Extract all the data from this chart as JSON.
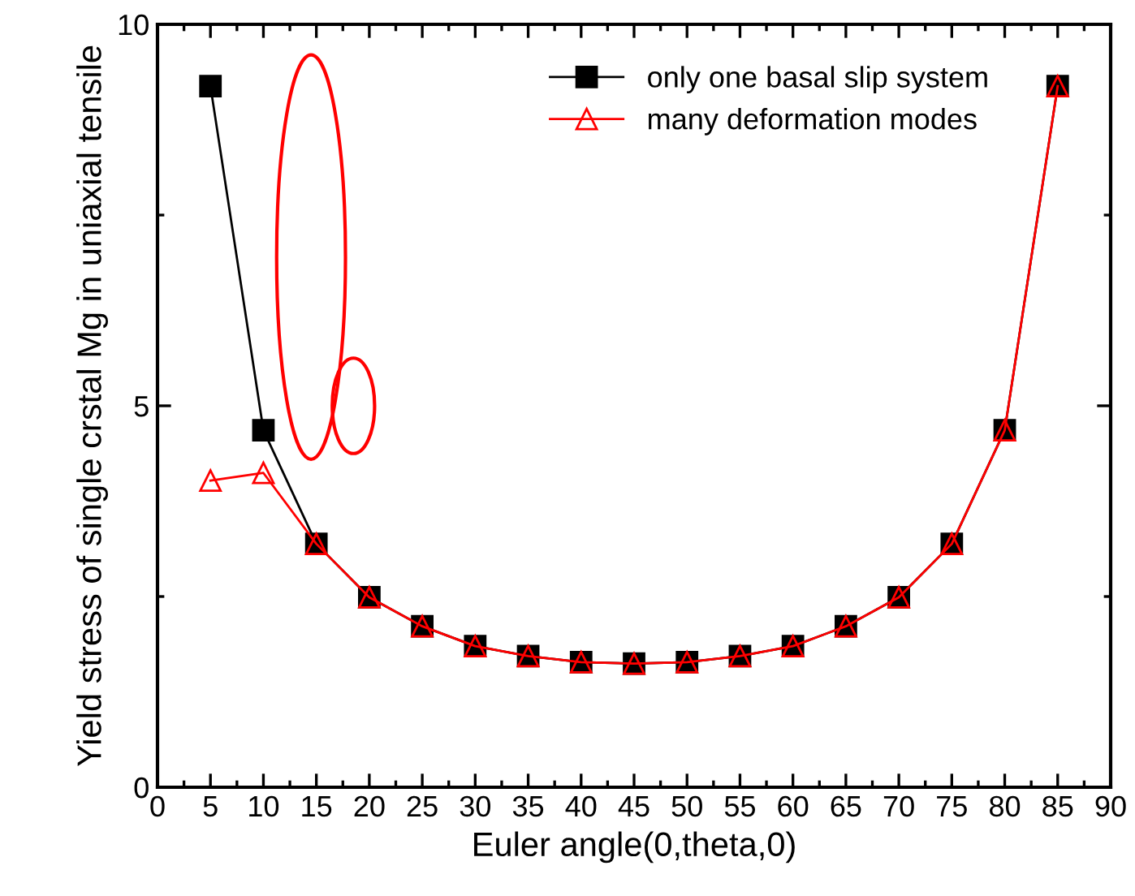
{
  "chart_data": {
    "type": "line",
    "xlabel": "Euler angle(0,theta,0)",
    "ylabel": "Yield stress of single crstal Mg in uniaxial tensile",
    "x": [
      5,
      10,
      15,
      20,
      25,
      30,
      35,
      40,
      45,
      50,
      55,
      60,
      65,
      70,
      75,
      80,
      85
    ],
    "series": [
      {
        "name": "only one basal slip system",
        "color": "#000000",
        "marker": "square",
        "values": [
          9.19,
          4.68,
          3.19,
          2.49,
          2.11,
          1.85,
          1.72,
          1.64,
          1.62,
          1.64,
          1.72,
          1.85,
          2.11,
          2.49,
          3.19,
          4.68,
          9.19
        ]
      },
      {
        "name": "many deformation modes",
        "color": "#ff0000",
        "marker": "triangle",
        "values": [
          4.02,
          4.12,
          3.19,
          2.49,
          2.11,
          1.85,
          1.72,
          1.64,
          1.62,
          1.64,
          1.72,
          1.85,
          2.11,
          2.49,
          3.19,
          4.68,
          9.19
        ]
      }
    ],
    "xlim": [
      0,
      90
    ],
    "xticks": [
      0,
      {
        "value": 2.5,
        "label": null
      },
      5,
      {
        "value": 7.5,
        "label": null
      },
      10,
      {
        "value": 12.5,
        "label": null
      },
      15,
      {
        "value": 17.5,
        "label": null
      },
      20,
      {
        "value": 22.5,
        "label": null
      },
      25,
      {
        "value": 27.5,
        "label": null
      },
      30,
      {
        "value": 32.5,
        "label": null
      },
      35,
      {
        "value": 37.5,
        "label": null
      },
      40,
      {
        "value": 42.5,
        "label": null
      },
      45,
      {
        "value": 47.5,
        "label": null
      },
      50,
      {
        "value": 52.5,
        "label": null
      },
      55,
      {
        "value": 57.5,
        "label": null
      },
      60,
      {
        "value": 62.5,
        "label": null
      },
      65,
      {
        "value": 67.5,
        "label": null
      },
      70,
      {
        "value": 72.5,
        "label": null
      },
      75,
      {
        "value": 77.5,
        "label": null
      },
      80,
      {
        "value": 82.5,
        "label": null
      },
      85,
      {
        "value": 87.5,
        "label": null
      },
      90
    ],
    "ylim": [
      0,
      10
    ],
    "yticks": [
      0,
      {
        "value": 2.5,
        "label": null
      },
      5,
      {
        "value": 7.5,
        "label": null
      },
      10
    ],
    "grid": false,
    "legend": "top right"
  }
}
